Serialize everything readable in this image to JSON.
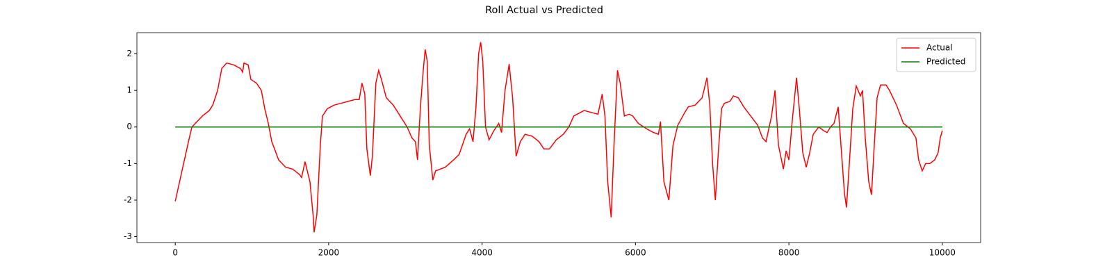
{
  "chart_data": {
    "type": "line",
    "title": "Roll Actual vs Predicted",
    "xlim": [
      -500,
      10500
    ],
    "ylim": [
      -3.16,
      2.58
    ],
    "xticks": [
      0,
      2000,
      4000,
      6000,
      8000,
      10000
    ],
    "yticks": [
      -3,
      -2,
      -1,
      0,
      1,
      2
    ],
    "legend": "upper right",
    "series": [
      {
        "name": "Actual",
        "color": "#ff0000",
        "x": [
          0,
          172,
          217,
          353,
          443,
          489,
          552,
          606,
          670,
          760,
          851,
          878,
          896,
          950,
          986,
          1059,
          1122,
          1167,
          1213,
          1258,
          1348,
          1439,
          1529,
          1620,
          1647,
          1692,
          1756,
          1801,
          1810,
          1846,
          1891,
          1919,
          1982,
          2072,
          2163,
          2253,
          2344,
          2398,
          2434,
          2471,
          2498,
          2543,
          2570,
          2615,
          2652,
          2688,
          2751,
          2842,
          2932,
          3023,
          3086,
          3131,
          3158,
          3195,
          3231,
          3258,
          3285,
          3312,
          3358,
          3394,
          3520,
          3629,
          3701,
          3792,
          3837,
          3882,
          3919,
          3955,
          3982,
          4009,
          4045,
          4091,
          4154,
          4217,
          4254,
          4299,
          4353,
          4398,
          4444,
          4498,
          4561,
          4652,
          4742,
          4806,
          4878,
          4968,
          5059,
          5131,
          5195,
          5285,
          5330,
          5421,
          5511,
          5566,
          5602,
          5638,
          5683,
          5720,
          5765,
          5801,
          5855,
          5919,
          5964,
          6036,
          6145,
          6235,
          6299,
          6326,
          6371,
          6435,
          6489,
          6552,
          6643,
          6688,
          6778,
          6869,
          6932,
          6969,
          7005,
          7041,
          7086,
          7122,
          7159,
          7231,
          7276,
          7340,
          7412,
          7502,
          7593,
          7656,
          7702,
          7774,
          7819,
          7864,
          7928,
          7964,
          8000,
          8045,
          8100,
          8136,
          8181,
          8226,
          8272,
          8317,
          8389,
          8453,
          8498,
          8543,
          8588,
          8643,
          8679,
          8724,
          8751,
          8788,
          8833,
          8878,
          8932,
          8960,
          8996,
          9041,
          9077,
          9113,
          9150,
          9195,
          9267,
          9312,
          9403,
          9493,
          9584,
          9656,
          9692,
          9738,
          9783,
          9837,
          9901,
          9946,
          9973,
          10000
        ],
        "values": [
          -2.03,
          -0.4,
          0.0,
          0.3,
          0.45,
          0.6,
          1.0,
          1.6,
          1.75,
          1.7,
          1.6,
          1.5,
          1.75,
          1.7,
          1.3,
          1.2,
          1.0,
          0.5,
          0.1,
          -0.4,
          -0.9,
          -1.1,
          -1.15,
          -1.3,
          -1.38,
          -0.95,
          -1.5,
          -2.5,
          -2.88,
          -2.4,
          -0.5,
          0.3,
          0.5,
          0.6,
          0.65,
          0.7,
          0.75,
          0.75,
          1.2,
          0.9,
          -0.6,
          -1.33,
          -0.8,
          1.2,
          1.55,
          1.3,
          0.8,
          0.6,
          0.3,
          0.0,
          -0.3,
          -0.4,
          -0.9,
          0.5,
          1.5,
          2.12,
          1.8,
          -0.5,
          -1.45,
          -1.2,
          -1.1,
          -0.9,
          -0.75,
          -0.2,
          -0.05,
          -0.4,
          0.5,
          2.0,
          2.32,
          1.8,
          0.0,
          -0.35,
          -0.1,
          0.1,
          -0.15,
          1.0,
          1.72,
          0.8,
          -0.8,
          -0.4,
          -0.2,
          -0.25,
          -0.4,
          -0.6,
          -0.6,
          -0.35,
          -0.2,
          0.0,
          0.3,
          0.4,
          0.45,
          0.4,
          0.35,
          0.9,
          0.3,
          -1.5,
          -2.47,
          -0.5,
          1.55,
          1.2,
          0.3,
          0.35,
          0.3,
          0.1,
          -0.05,
          -0.15,
          -0.2,
          0.15,
          -1.5,
          -2.0,
          -0.5,
          0.05,
          0.4,
          0.55,
          0.6,
          0.8,
          1.35,
          0.6,
          -1.0,
          -2.0,
          -0.5,
          0.5,
          0.65,
          0.7,
          0.85,
          0.8,
          0.55,
          0.3,
          0.05,
          -0.3,
          -0.4,
          0.3,
          1.0,
          -0.5,
          -1.15,
          -0.65,
          -0.9,
          0.2,
          1.35,
          0.5,
          -0.7,
          -1.1,
          -0.7,
          -0.2,
          0.0,
          -0.1,
          -0.15,
          0.0,
          0.1,
          0.55,
          -0.5,
          -1.8,
          -2.2,
          -1.0,
          0.5,
          1.12,
          0.85,
          1.0,
          -0.3,
          -1.5,
          -1.85,
          -0.5,
          0.8,
          1.15,
          1.15,
          1.0,
          0.6,
          0.1,
          -0.05,
          -0.3,
          -0.9,
          -1.2,
          -1.0,
          -1.0,
          -0.9,
          -0.7,
          -0.3,
          -0.1
        ]
      },
      {
        "name": "Predicted",
        "color": "#008000",
        "x": [
          0,
          10000
        ],
        "values": [
          0,
          0
        ]
      }
    ]
  }
}
